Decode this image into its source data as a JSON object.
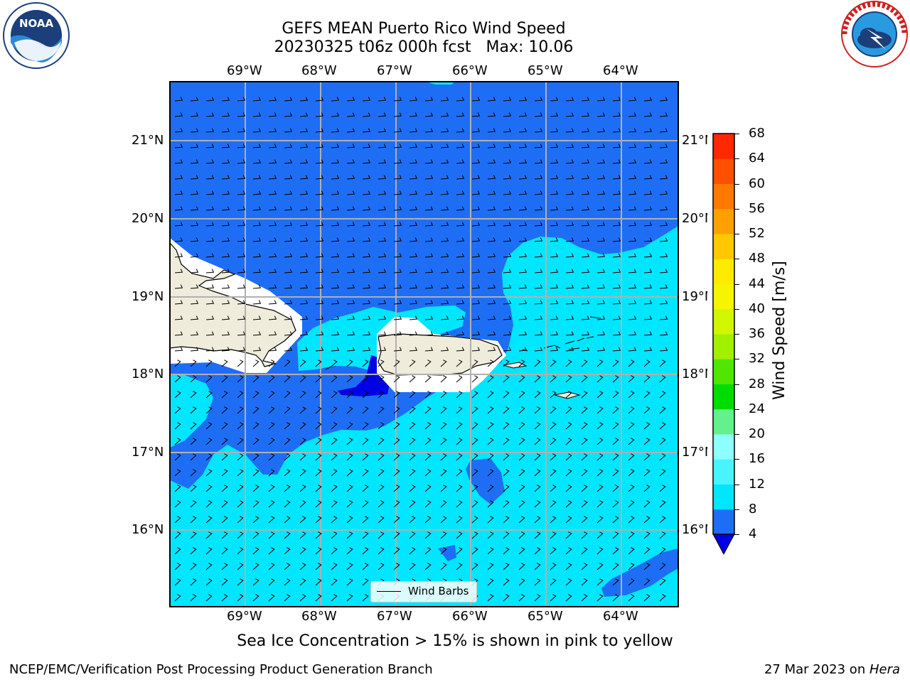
{
  "title_line1": "GEFS MEAN Puerto Rico Wind Speed",
  "title_line2": "20230325 t06z 000h fcst   Max: 10.06",
  "lon_labels": [
    "69°W",
    "68°W",
    "67°W",
    "66°W",
    "65°W",
    "64°W"
  ],
  "lat_labels": [
    "21°N",
    "20°N",
    "19°N",
    "18°N",
    "17°N",
    "16°N"
  ],
  "legend_label": "Wind Barbs",
  "colorbar": {
    "label": "Wind Speed [m/s]",
    "ticks": [
      "4",
      "8",
      "12",
      "16",
      "20",
      "24",
      "28",
      "32",
      "36",
      "40",
      "44",
      "48",
      "52",
      "56",
      "60",
      "64",
      "68"
    ],
    "colors": [
      "#1e6ef5",
      "#00e6ff",
      "#46f5ff",
      "#8cffff",
      "#64f08c",
      "#00dc00",
      "#50e600",
      "#a0f000",
      "#d2f500",
      "#f5f500",
      "#ffeb00",
      "#ffc800",
      "#ffa000",
      "#ff7800",
      "#ff5000",
      "#ff2800"
    ],
    "under_color": "#0000e6"
  },
  "caption": "Sea Ice Concentration > 15% is shown in pink to yellow",
  "footer_left": "NCEP/EMC/Verification Post Processing Product Generation Branch",
  "footer_right_prefix": "27 Mar 2023 on ",
  "footer_right_machine": "Hera",
  "logos": {
    "left": "noaa-logo",
    "right": "nws-logo",
    "left_text": "NOAA",
    "right_text": "NATIONAL WEATHER SERVICE"
  },
  "colors": {
    "low_wind": "#1e6ef5",
    "moderate_wind": "#00e6ff",
    "min_wind": "#0000e6",
    "land": "#efecdc"
  }
}
